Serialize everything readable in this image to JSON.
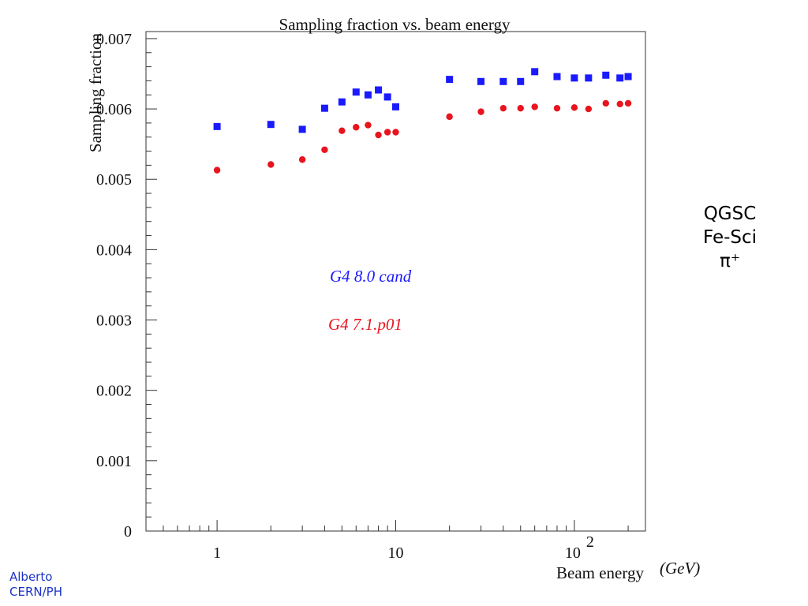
{
  "chart_data": {
    "type": "scatter",
    "title": "Sampling fraction vs. beam energy",
    "xlabel": "Beam energy",
    "ylabel": "Sampling fraction",
    "x_scale": "log",
    "xlim": [
      0.4,
      250
    ],
    "ylim": [
      0,
      0.0071
    ],
    "grid": false,
    "x_tick_labels": [
      "1",
      "10",
      "10",
      "2"
    ],
    "y_tick_labels": [
      "0",
      "0.001",
      "0.002",
      "0.003",
      "0.004",
      "0.005",
      "0.006",
      "0.007"
    ],
    "series": [
      {
        "name": "G4 8.0 cand",
        "color": "#1a1aff",
        "marker": "square",
        "x": [
          1,
          2,
          3,
          4,
          5,
          6,
          7,
          8,
          9,
          10,
          20,
          30,
          40,
          50,
          60,
          80,
          100,
          120,
          150,
          180,
          200
        ],
        "y": [
          0.00575,
          0.00578,
          0.00571,
          0.00601,
          0.0061,
          0.00624,
          0.0062,
          0.00627,
          0.00617,
          0.00603,
          0.00642,
          0.00639,
          0.00639,
          0.00639,
          0.00653,
          0.00646,
          0.00644,
          0.00644,
          0.00648,
          0.00644,
          0.00646
        ]
      },
      {
        "name": "G4 7.1.p01",
        "color": "#e8141e",
        "marker": "circle",
        "x": [
          1,
          2,
          3,
          4,
          5,
          6,
          7,
          8,
          9,
          10,
          20,
          30,
          40,
          50,
          60,
          80,
          100,
          120,
          150,
          180,
          200
        ],
        "y": [
          0.00513,
          0.00521,
          0.00528,
          0.00542,
          0.00569,
          0.00574,
          0.00577,
          0.00563,
          0.00567,
          0.00567,
          0.00589,
          0.00596,
          0.00601,
          0.00601,
          0.00603,
          0.00601,
          0.00602,
          0.006,
          0.00608,
          0.00607,
          0.00608
        ]
      }
    ],
    "units_note": "(GeV)"
  },
  "side_note": {
    "line1": "QGSC",
    "line2": "Fe-Sci",
    "line3": "π⁺"
  },
  "footer": {
    "line1": "Alberto",
    "line2": "CERN/PH"
  }
}
